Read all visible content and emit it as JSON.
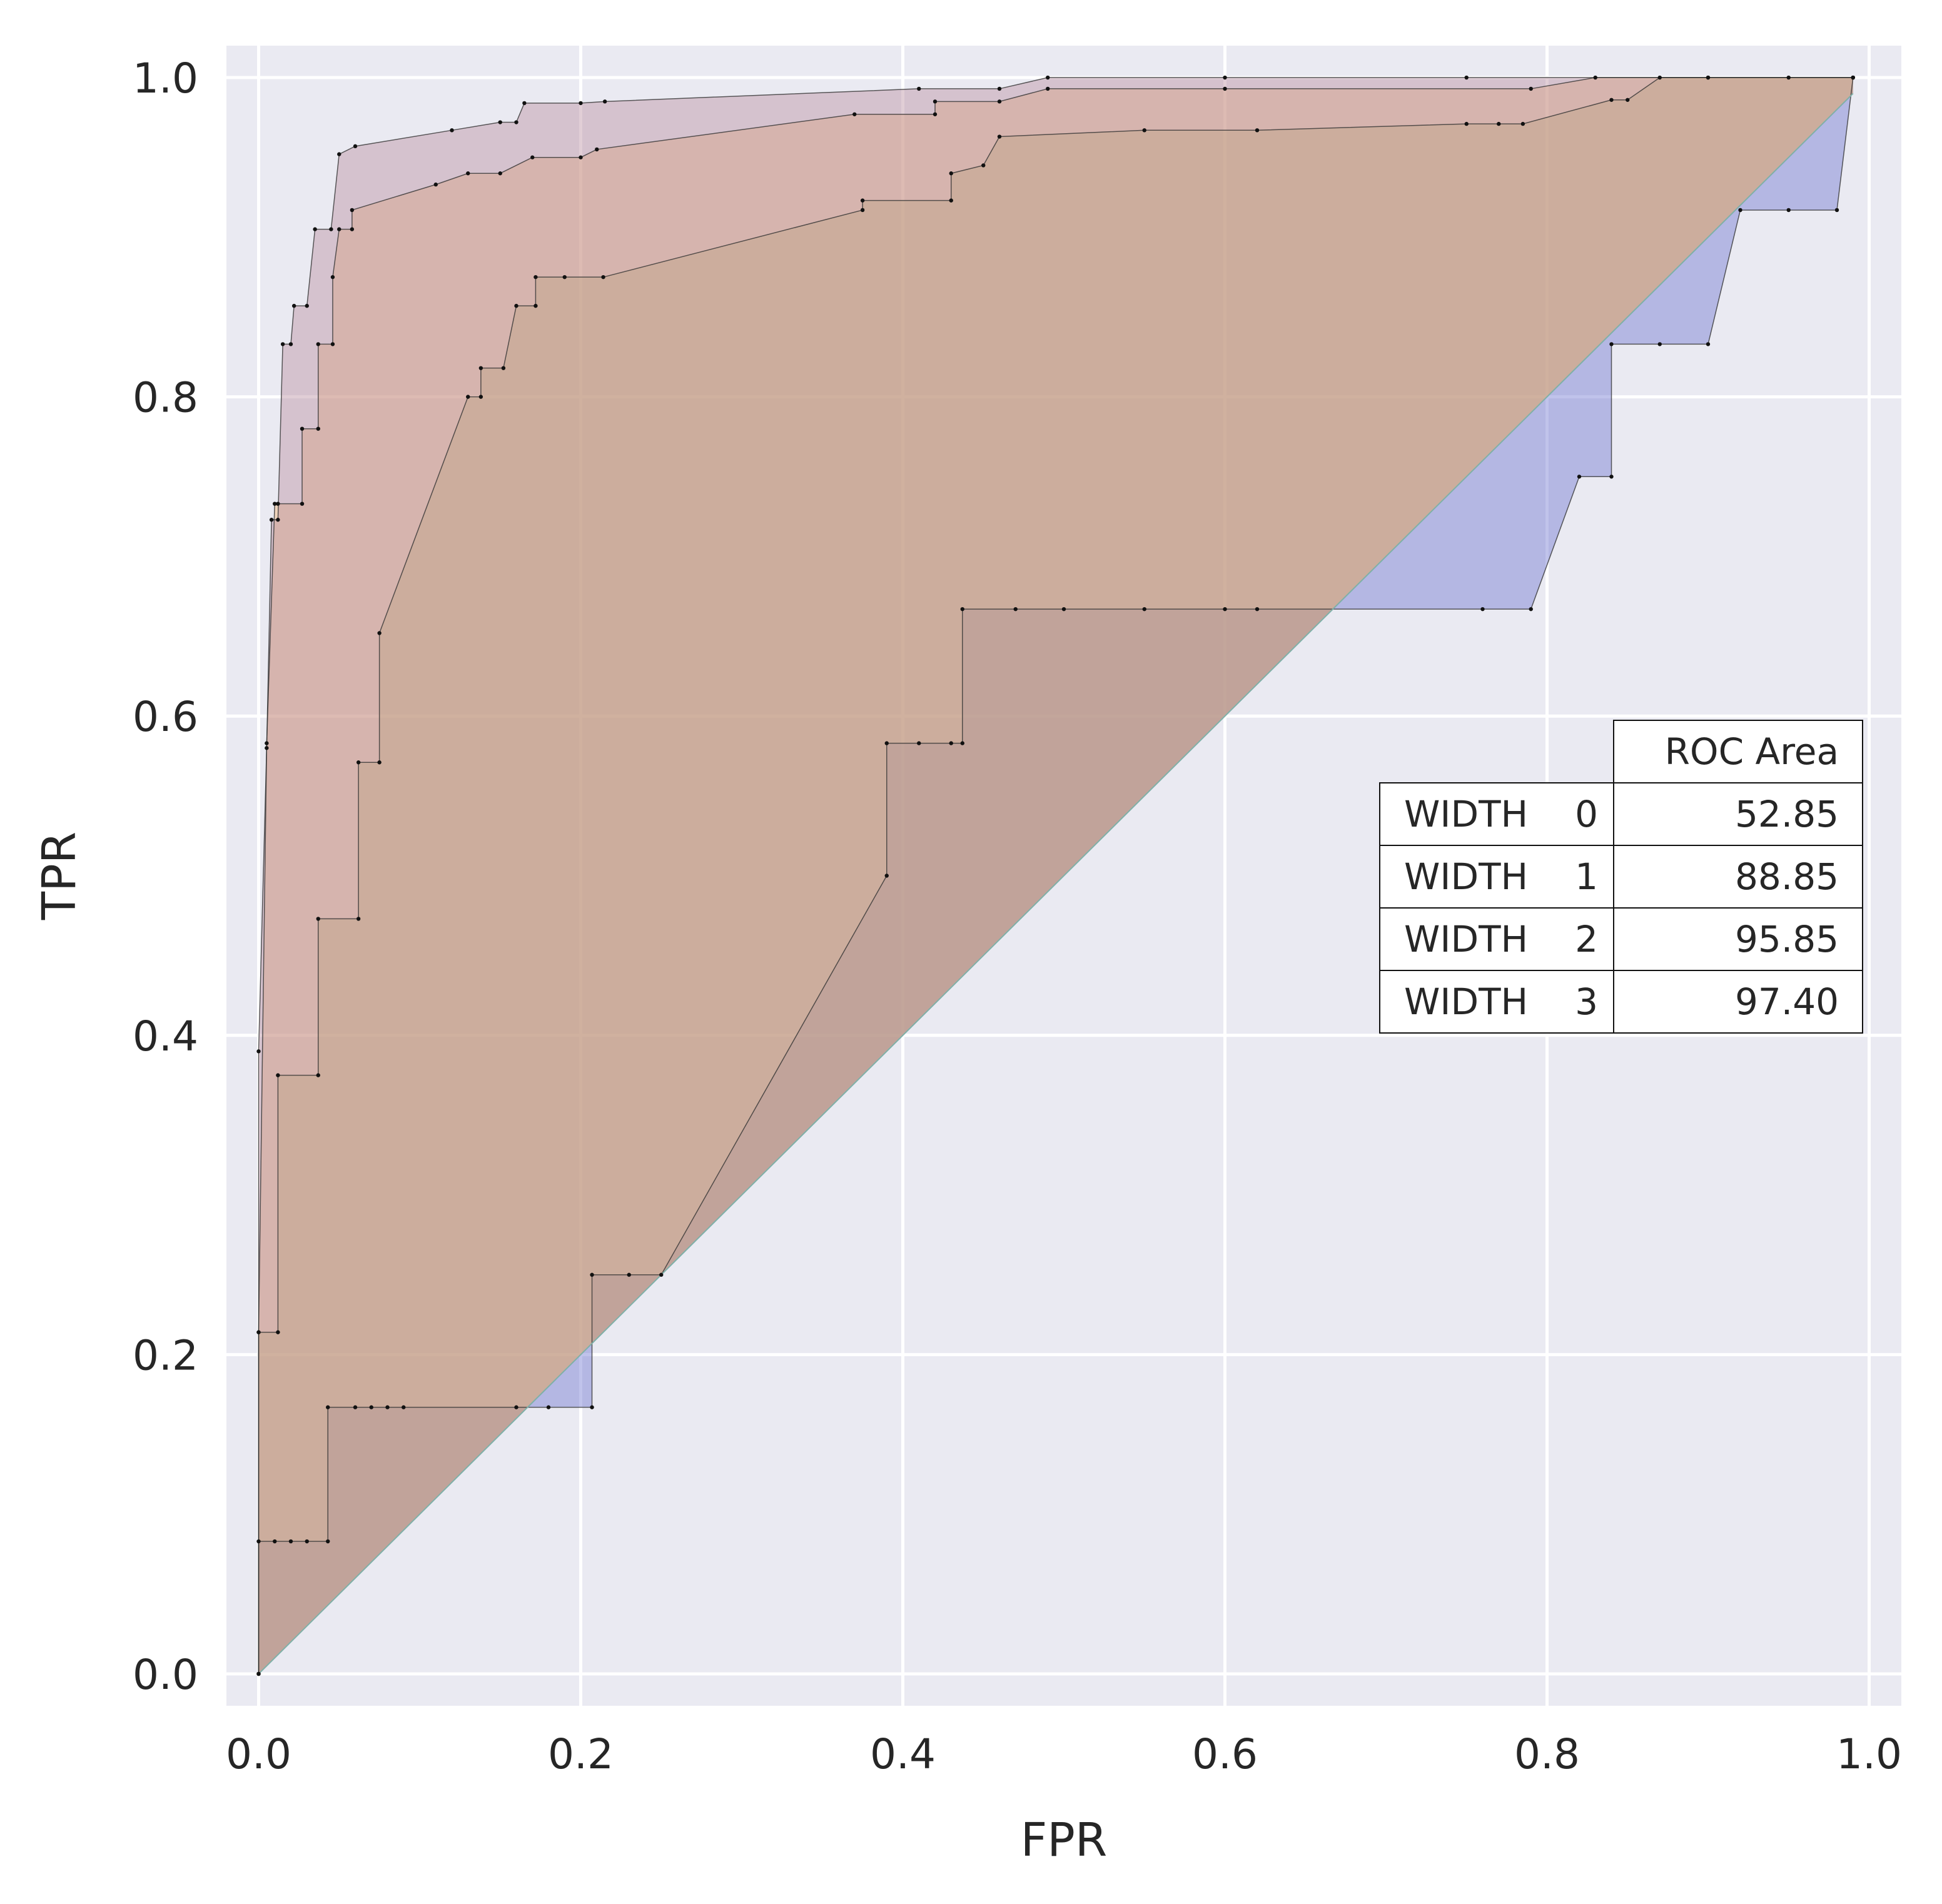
{
  "chart_data": {
    "type": "area",
    "title": "",
    "xlabel": "FPR",
    "ylabel": "TPR",
    "xlim": [
      -0.02,
      1.02
    ],
    "ylim": [
      -0.02,
      1.02
    ],
    "xticks": [
      "0.0",
      "0.2",
      "0.4",
      "0.6",
      "0.8",
      "1.0"
    ],
    "yticks": [
      "0.0",
      "0.2",
      "0.4",
      "0.6",
      "0.8",
      "1.0"
    ],
    "grid": true,
    "legend": "none",
    "colors": {
      "background": "#eaeaf2",
      "grid": "#ffffff",
      "series": [
        "#6a6fcf",
        "#9fbf75",
        "#f0b070",
        "#b88a9e"
      ]
    },
    "series": [
      {
        "name": "WIDTH 0",
        "points": [
          [
            0.0,
            0.0
          ],
          [
            0.0,
            0.083
          ],
          [
            0.01,
            0.083
          ],
          [
            0.02,
            0.083
          ],
          [
            0.03,
            0.083
          ],
          [
            0.043,
            0.083
          ],
          [
            0.043,
            0.167
          ],
          [
            0.06,
            0.167
          ],
          [
            0.07,
            0.167
          ],
          [
            0.08,
            0.167
          ],
          [
            0.09,
            0.167
          ],
          [
            0.16,
            0.167
          ],
          [
            0.18,
            0.167
          ],
          [
            0.207,
            0.167
          ],
          [
            0.207,
            0.25
          ],
          [
            0.23,
            0.25
          ],
          [
            0.25,
            0.25
          ],
          [
            0.39,
            0.5
          ],
          [
            0.39,
            0.583
          ],
          [
            0.41,
            0.583
          ],
          [
            0.43,
            0.583
          ],
          [
            0.437,
            0.583
          ],
          [
            0.437,
            0.667
          ],
          [
            0.47,
            0.667
          ],
          [
            0.5,
            0.667
          ],
          [
            0.55,
            0.667
          ],
          [
            0.6,
            0.667
          ],
          [
            0.62,
            0.667
          ],
          [
            0.76,
            0.667
          ],
          [
            0.79,
            0.667
          ],
          [
            0.82,
            0.75
          ],
          [
            0.84,
            0.75
          ],
          [
            0.84,
            0.833
          ],
          [
            0.87,
            0.833
          ],
          [
            0.9,
            0.833
          ],
          [
            0.92,
            0.917
          ],
          [
            0.95,
            0.917
          ],
          [
            0.98,
            0.917
          ],
          [
            0.99,
            1.0
          ]
        ]
      },
      {
        "name": "WIDTH 1",
        "points": [
          [
            0.0,
            0.0
          ],
          [
            0.0,
            0.214
          ],
          [
            0.012,
            0.214
          ],
          [
            0.012,
            0.375
          ],
          [
            0.037,
            0.375
          ],
          [
            0.037,
            0.473
          ],
          [
            0.062,
            0.473
          ],
          [
            0.062,
            0.571
          ],
          [
            0.075,
            0.571
          ],
          [
            0.075,
            0.652
          ],
          [
            0.13,
            0.8
          ],
          [
            0.138,
            0.8
          ],
          [
            0.138,
            0.818
          ],
          [
            0.152,
            0.818
          ],
          [
            0.16,
            0.857
          ],
          [
            0.172,
            0.857
          ],
          [
            0.172,
            0.875
          ],
          [
            0.19,
            0.875
          ],
          [
            0.214,
            0.875
          ],
          [
            0.375,
            0.917
          ],
          [
            0.375,
            0.923
          ],
          [
            0.43,
            0.923
          ],
          [
            0.43,
            0.94
          ],
          [
            0.45,
            0.945
          ],
          [
            0.46,
            0.963
          ],
          [
            0.55,
            0.967
          ],
          [
            0.62,
            0.967
          ],
          [
            0.75,
            0.971
          ],
          [
            0.77,
            0.971
          ],
          [
            0.785,
            0.971
          ],
          [
            0.84,
            0.986
          ],
          [
            0.85,
            0.986
          ],
          [
            0.87,
            1.0
          ],
          [
            0.9,
            1.0
          ],
          [
            0.95,
            1.0
          ],
          [
            0.99,
            1.0
          ]
        ]
      },
      {
        "name": "WIDTH 2",
        "points": [
          [
            0.0,
            0.0
          ],
          [
            0.0,
            0.214
          ],
          [
            0.005,
            0.583
          ],
          [
            0.01,
            0.733
          ],
          [
            0.012,
            0.733
          ],
          [
            0.027,
            0.733
          ],
          [
            0.027,
            0.78
          ],
          [
            0.037,
            0.78
          ],
          [
            0.037,
            0.833
          ],
          [
            0.046,
            0.833
          ],
          [
            0.046,
            0.875
          ],
          [
            0.05,
            0.905
          ],
          [
            0.058,
            0.905
          ],
          [
            0.058,
            0.917
          ],
          [
            0.11,
            0.933
          ],
          [
            0.13,
            0.94
          ],
          [
            0.15,
            0.94
          ],
          [
            0.17,
            0.95
          ],
          [
            0.2,
            0.95
          ],
          [
            0.21,
            0.955
          ],
          [
            0.37,
            0.977
          ],
          [
            0.42,
            0.977
          ],
          [
            0.42,
            0.985
          ],
          [
            0.46,
            0.985
          ],
          [
            0.49,
            0.993
          ],
          [
            0.6,
            0.993
          ],
          [
            0.79,
            0.993
          ],
          [
            0.83,
            1.0
          ],
          [
            0.9,
            1.0
          ],
          [
            0.99,
            1.0
          ]
        ]
      },
      {
        "name": "WIDTH 3",
        "points": [
          [
            0.0,
            0.0
          ],
          [
            0.0,
            0.39
          ],
          [
            0.005,
            0.58
          ],
          [
            0.008,
            0.723
          ],
          [
            0.012,
            0.723
          ],
          [
            0.015,
            0.833
          ],
          [
            0.02,
            0.833
          ],
          [
            0.022,
            0.857
          ],
          [
            0.03,
            0.857
          ],
          [
            0.035,
            0.905
          ],
          [
            0.045,
            0.905
          ],
          [
            0.05,
            0.952
          ],
          [
            0.06,
            0.957
          ],
          [
            0.12,
            0.967
          ],
          [
            0.15,
            0.972
          ],
          [
            0.16,
            0.972
          ],
          [
            0.165,
            0.984
          ],
          [
            0.2,
            0.984
          ],
          [
            0.215,
            0.985
          ],
          [
            0.41,
            0.993
          ],
          [
            0.46,
            0.993
          ],
          [
            0.49,
            1.0
          ],
          [
            0.6,
            1.0
          ],
          [
            0.75,
            1.0
          ],
          [
            0.99,
            1.0
          ]
        ]
      }
    ],
    "table": {
      "header": "ROC Area",
      "rows": [
        {
          "label": "WIDTH",
          "index": "0",
          "value": "52.85"
        },
        {
          "label": "WIDTH",
          "index": "1",
          "value": "88.85"
        },
        {
          "label": "WIDTH",
          "index": "2",
          "value": "95.85"
        },
        {
          "label": "WIDTH",
          "index": "3",
          "value": "97.40"
        }
      ]
    }
  }
}
